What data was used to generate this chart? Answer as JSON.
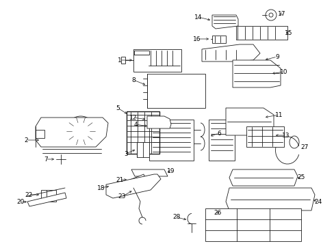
{
  "bg_color": "#ffffff",
  "line_color": "#1a1a1a",
  "text_color": "#000000",
  "fig_width": 4.89,
  "fig_height": 3.6,
  "dpi": 100,
  "lw": 0.6,
  "font_size": 6.5
}
